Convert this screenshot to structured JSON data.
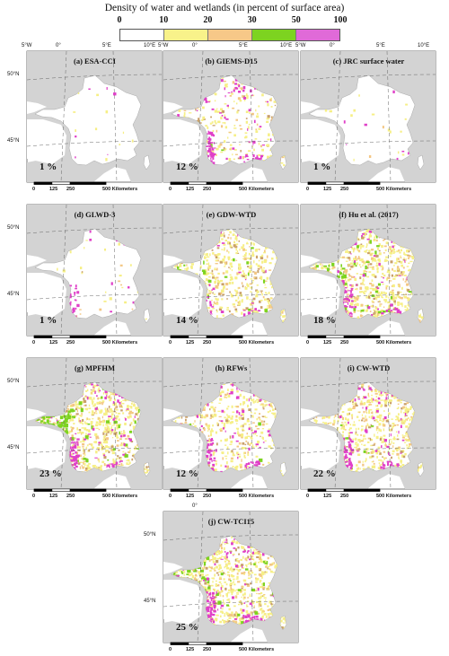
{
  "legend": {
    "title": "Density of water and wetlands (in percent of surface area)",
    "ticks": [
      "0",
      "10",
      "20",
      "30",
      "50",
      "100"
    ],
    "colors": [
      "#ffffff",
      "#f8f28a",
      "#f7c888",
      "#7dd320",
      "#e06ad8"
    ]
  },
  "axes": {
    "lon": [
      "5°W",
      "0°",
      "5°E",
      "10°E"
    ],
    "lat": [
      "50°N",
      "45°N"
    ]
  },
  "scalebar": {
    "ticks": [
      "0",
      "125",
      "250",
      "500"
    ],
    "unit": "Kilometers"
  },
  "panels": [
    {
      "title": "(a) ESA-CCI",
      "percent": "1 %",
      "density": 0.02,
      "magenta": 0.03,
      "green": 0
    },
    {
      "title": "(b) GIEMS-D15",
      "percent": "12 %",
      "density": 0.25,
      "magenta": 0.55,
      "green": 0.02
    },
    {
      "title": "(c) JRC surface water",
      "percent": "1 %",
      "density": 0.02,
      "magenta": 0.03,
      "green": 0
    },
    {
      "title": "(d) GLWD-3",
      "percent": "1 %",
      "density": 0.03,
      "magenta": 0.15,
      "green": 0
    },
    {
      "title": "(e) GDW-WTD",
      "percent": "14 %",
      "density": 0.6,
      "magenta": 0.12,
      "green": 0.08
    },
    {
      "title": "(f) Hu et al. (2017)",
      "percent": "18 %",
      "density": 0.75,
      "magenta": 0.35,
      "green": 0.2
    },
    {
      "title": "(g) MPFHM",
      "percent": "23 %",
      "density": 0.7,
      "magenta": 0.6,
      "green": 0.45
    },
    {
      "title": "(h) RFWs",
      "percent": "12 %",
      "density": 0.45,
      "magenta": 0.5,
      "green": 0.03
    },
    {
      "title": "(i) CW-WTD",
      "percent": "22 %",
      "density": 0.7,
      "magenta": 0.55,
      "green": 0.05
    },
    {
      "title": "(j) CW-TCI15",
      "percent": "25 %",
      "density": 0.75,
      "magenta": 0.6,
      "green": 0.25
    }
  ]
}
